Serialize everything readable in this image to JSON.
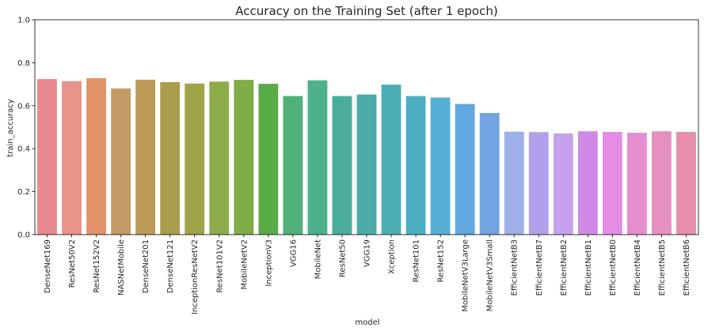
{
  "chart_data": {
    "type": "bar",
    "title": "Accuracy on the Training Set (after 1 epoch)",
    "xlabel": "model",
    "ylabel": "train_accuracy",
    "ylim": [
      0,
      1.0
    ],
    "yticks": [
      "0.0",
      "0.2",
      "0.4",
      "0.6",
      "0.8",
      "1.0"
    ],
    "grid": false,
    "categories": [
      "DenseNet169",
      "ResNet50V2",
      "ResNet152V2",
      "NASNetMobile",
      "DenseNet201",
      "DenseNet121",
      "InceptionResNetV2",
      "ResNet101V2",
      "MobileNetV2",
      "InceptionV3",
      "VGG16",
      "MobileNet",
      "ResNet50",
      "VGG19",
      "Xception",
      "ResNet101",
      "ResNet152",
      "MobileNetV3Large",
      "MobileNetV3Small",
      "EfficientNetB3",
      "EfficientNetB7",
      "EfficientNetB2",
      "EfficientNetB1",
      "EfficientNetB0",
      "EfficientNetB4",
      "EfficientNetB5",
      "EfficientNetB6"
    ],
    "values": [
      0.724,
      0.714,
      0.728,
      0.68,
      0.721,
      0.71,
      0.703,
      0.712,
      0.72,
      0.702,
      0.645,
      0.718,
      0.645,
      0.652,
      0.698,
      0.645,
      0.638,
      0.608,
      0.566,
      0.479,
      0.477,
      0.471,
      0.481,
      0.478,
      0.474,
      0.481,
      0.478
    ],
    "colors": [
      "#e8898f",
      "#e8948a",
      "#e29268",
      "#c59a67",
      "#bb9a55",
      "#aa9e4e",
      "#9ea447",
      "#8cac4b",
      "#80ac47",
      "#5aad46",
      "#4fb07a",
      "#4bb28c",
      "#4aad9c",
      "#4caca7",
      "#4aafb5",
      "#4db0c2",
      "#57aed4",
      "#61a9e0",
      "#72a4e2",
      "#9fb0e8",
      "#b0a1ea",
      "#c5a2eb",
      "#d08ae6",
      "#e38ee4",
      "#e58ed0",
      "#e690c0",
      "#e78fab"
    ]
  }
}
